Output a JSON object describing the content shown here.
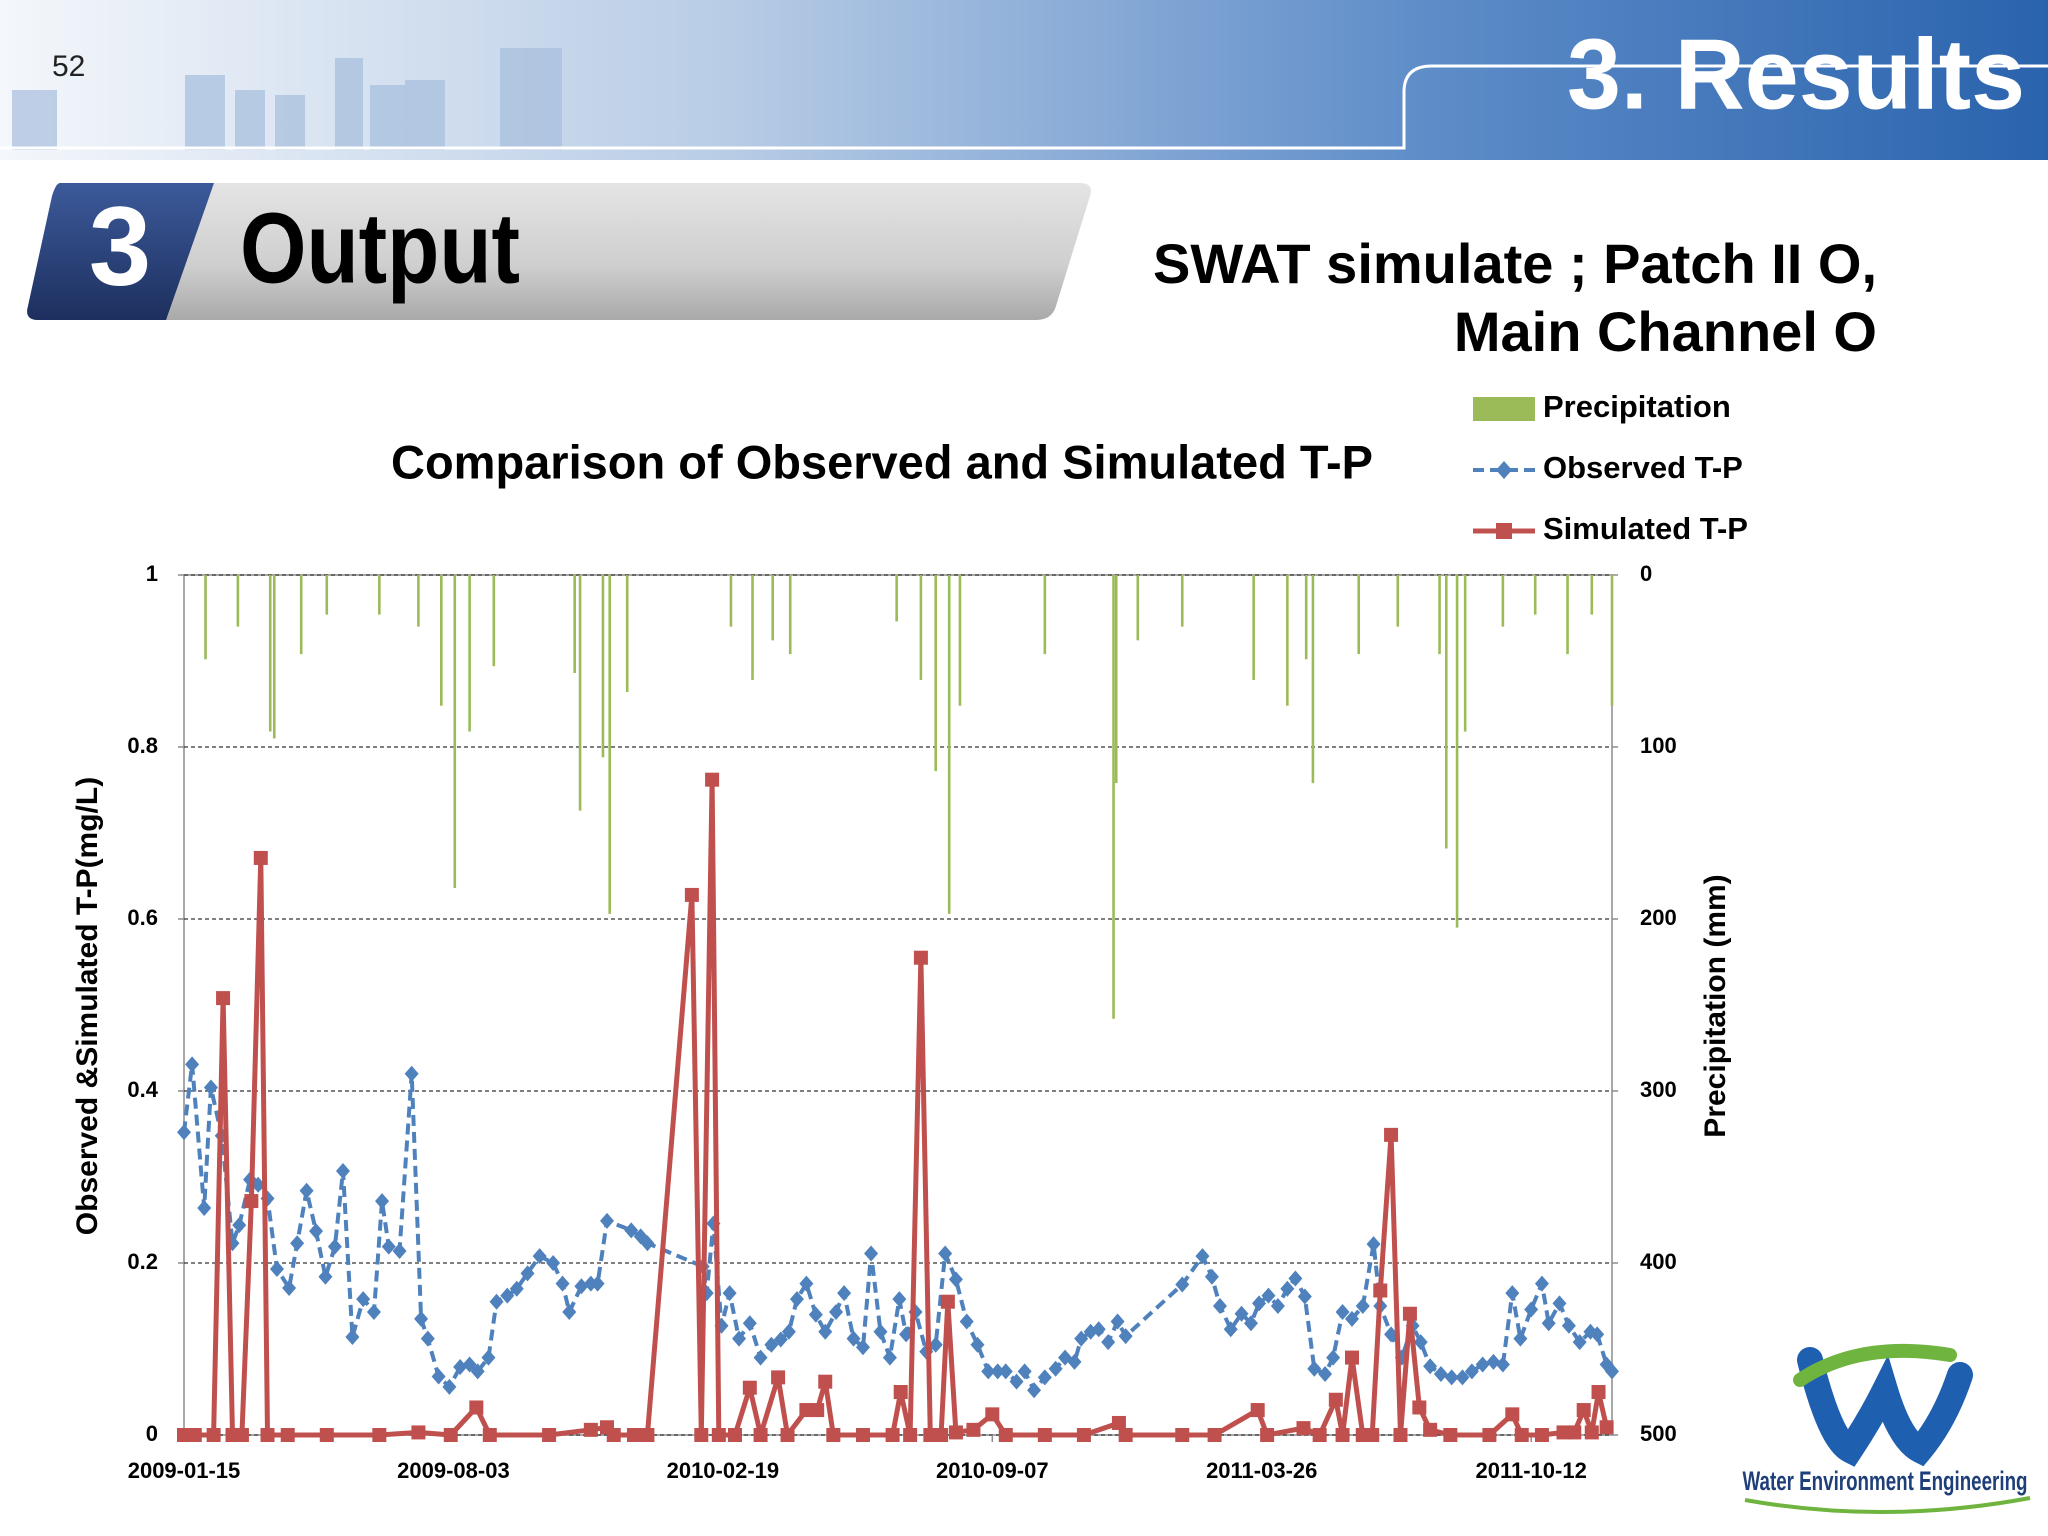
{
  "slide": {
    "page_number": "52",
    "section": "3. Results",
    "heading_number": "3",
    "heading": "Output",
    "subtitle_lines": [
      "SWAT simulate ; Patch II O,",
      "Main Channel O"
    ],
    "logo_text": "Water Environment Engineering"
  },
  "chart_data": {
    "type": "line",
    "title": "Comparison of Observed and Simulated T-P",
    "y_label": "Observed &Simulated T-P(mg/L)",
    "y2_label": "Precipitation (mm)",
    "xlim": [
      "2009-01-15",
      "2011-12-11"
    ],
    "xticks": [
      "2009-01-15",
      "2009-08-03",
      "2010-02-19",
      "2010-09-07",
      "2011-03-26",
      "2011-10-12"
    ],
    "ylim": [
      0,
      1
    ],
    "yticks": [
      0,
      0.2,
      0.4,
      0.6,
      0.8,
      1
    ],
    "y2lim": [
      0,
      500
    ],
    "y2ticks": [
      0,
      100,
      200,
      300,
      400,
      500
    ],
    "y2_inverted": true,
    "grid": true,
    "legend": "top-right",
    "series": [
      {
        "name": "Precipitation",
        "type": "bar",
        "axis": "y2",
        "color": "#9bbb59",
        "x": [
          "2009-01-31",
          "2009-02-24",
          "2009-03-20",
          "2009-03-23",
          "2009-04-12",
          "2009-05-01",
          "2009-06-09",
          "2009-07-08",
          "2009-07-25",
          "2009-08-04",
          "2009-08-15",
          "2009-09-02",
          "2009-11-01",
          "2009-11-05",
          "2009-11-22",
          "2009-11-27",
          "2009-12-10",
          "2010-02-25",
          "2010-03-13",
          "2010-03-28",
          "2010-04-10",
          "2010-06-28",
          "2010-07-16",
          "2010-07-27",
          "2010-08-06",
          "2010-08-14",
          "2010-10-16",
          "2010-12-06",
          "2010-12-08",
          "2010-12-24",
          "2011-01-26",
          "2011-03-20",
          "2011-04-14",
          "2011-04-28",
          "2011-05-03",
          "2011-06-06",
          "2011-07-05",
          "2011-08-05",
          "2011-08-10",
          "2011-08-18",
          "2011-08-24",
          "2011-09-21",
          "2011-10-15",
          "2011-11-08",
          "2011-11-26",
          "2011-12-11"
        ],
        "values": [
          49,
          30,
          91,
          95,
          46,
          23,
          23,
          30,
          76,
          182,
          91,
          53,
          57,
          137,
          106,
          197,
          68,
          30,
          61,
          38,
          46,
          27,
          61,
          114,
          197,
          76,
          46,
          258,
          121,
          38,
          30,
          61,
          76,
          49,
          121,
          46,
          30,
          46,
          159,
          205,
          91,
          30,
          23,
          46,
          23,
          76
        ]
      },
      {
        "name": "Observed T-P",
        "type": "line",
        "axis": "y",
        "color": "#4f81bd",
        "marker": "diamond",
        "dashed": true,
        "x": [
          "2009-01-15",
          "2009-01-21",
          "2009-01-30",
          "2009-02-04",
          "2009-02-12",
          "2009-02-20",
          "2009-02-25",
          "2009-03-05",
          "2009-03-11",
          "2009-03-18",
          "2009-03-25",
          "2009-04-03",
          "2009-04-09",
          "2009-04-16",
          "2009-04-23",
          "2009-04-30",
          "2009-05-07",
          "2009-05-13",
          "2009-05-20",
          "2009-05-28",
          "2009-06-05",
          "2009-06-11",
          "2009-06-16",
          "2009-06-24",
          "2009-07-03",
          "2009-07-10",
          "2009-07-15",
          "2009-07-23",
          "2009-07-31",
          "2009-08-08",
          "2009-08-15",
          "2009-08-21",
          "2009-08-29",
          "2009-09-04",
          "2009-09-12",
          "2009-09-19",
          "2009-09-27",
          "2009-10-06",
          "2009-10-16",
          "2009-10-23",
          "2009-10-28",
          "2009-11-06",
          "2009-11-13",
          "2009-11-18",
          "2009-11-25",
          "2009-12-13",
          "2009-12-20",
          "2009-12-25",
          "2010-02-04",
          "2010-02-07",
          "2010-02-12",
          "2010-02-18",
          "2010-02-24",
          "2010-03-03",
          "2010-03-11",
          "2010-03-19",
          "2010-03-27",
          "2010-04-03",
          "2010-04-09",
          "2010-04-15",
          "2010-04-22",
          "2010-04-29",
          "2010-05-06",
          "2010-05-14",
          "2010-05-20",
          "2010-05-27",
          "2010-06-03",
          "2010-06-09",
          "2010-06-16",
          "2010-06-23",
          "2010-06-30",
          "2010-07-05",
          "2010-07-12",
          "2010-07-20",
          "2010-07-27",
          "2010-08-03",
          "2010-08-11",
          "2010-08-19",
          "2010-08-27",
          "2010-09-04",
          "2010-09-11",
          "2010-09-17",
          "2010-09-25",
          "2010-10-01",
          "2010-10-08",
          "2010-10-16",
          "2010-10-24",
          "2010-10-31",
          "2010-11-07",
          "2010-11-12",
          "2010-11-19",
          "2010-11-25",
          "2010-12-02",
          "2010-12-09",
          "2010-12-15",
          "2011-01-26",
          "2011-02-10",
          "2011-02-17",
          "2011-02-23",
          "2011-03-03",
          "2011-03-11",
          "2011-03-18",
          "2011-03-24",
          "2011-03-31",
          "2011-04-07",
          "2011-04-14",
          "2011-04-20",
          "2011-04-27",
          "2011-05-04",
          "2011-05-12",
          "2011-05-18",
          "2011-05-25",
          "2011-06-01",
          "2011-06-09",
          "2011-06-17",
          "2011-06-22",
          "2011-06-30",
          "2011-07-08",
          "2011-07-16",
          "2011-07-22",
          "2011-07-29",
          "2011-08-06",
          "2011-08-14",
          "2011-08-22",
          "2011-08-29",
          "2011-09-06",
          "2011-09-14",
          "2011-09-21",
          "2011-09-28",
          "2011-10-04",
          "2011-10-12",
          "2011-10-20",
          "2011-10-25",
          "2011-11-02",
          "2011-11-09",
          "2011-11-17",
          "2011-11-25",
          "2011-11-30",
          "2011-12-07",
          "2011-12-11"
        ],
        "values": [
          0.352,
          0.431,
          0.264,
          0.404,
          0.348,
          0.223,
          0.244,
          0.297,
          0.291,
          0.275,
          0.193,
          0.171,
          0.223,
          0.284,
          0.237,
          0.184,
          0.219,
          0.307,
          0.114,
          0.158,
          0.143,
          0.272,
          0.219,
          0.214,
          0.42,
          0.135,
          0.112,
          0.068,
          0.056,
          0.079,
          0.082,
          0.074,
          0.09,
          0.155,
          0.162,
          0.17,
          0.188,
          0.208,
          0.2,
          0.176,
          0.143,
          0.173,
          0.176,
          0.176,
          0.249,
          0.238,
          0.231,
          0.223,
          0.196,
          0.165,
          0.246,
          0.127,
          0.165,
          0.112,
          0.13,
          0.09,
          0.105,
          0.111,
          0.12,
          0.158,
          0.176,
          0.14,
          0.12,
          0.143,
          0.165,
          0.112,
          0.102,
          0.211,
          0.12,
          0.09,
          0.158,
          0.117,
          0.143,
          0.097,
          0.105,
          0.211,
          0.181,
          0.132,
          0.105,
          0.074,
          0.074,
          0.074,
          0.062,
          0.074,
          0.052,
          0.067,
          0.077,
          0.09,
          0.085,
          0.112,
          0.12,
          0.123,
          0.108,
          0.132,
          0.115,
          0.175,
          0.208,
          0.184,
          0.15,
          0.123,
          0.141,
          0.13,
          0.153,
          0.162,
          0.15,
          0.17,
          0.182,
          0.161,
          0.077,
          0.071,
          0.09,
          0.143,
          0.135,
          0.15,
          0.222,
          0.15,
          0.117,
          0.09,
          0.127,
          0.108,
          0.08,
          0.071,
          0.067,
          0.067,
          0.074,
          0.082,
          0.085,
          0.082,
          0.165,
          0.112,
          0.146,
          0.176,
          0.13,
          0.153,
          0.127,
          0.108,
          0.12,
          0.117,
          0.082,
          0.074
        ]
      },
      {
        "name": "Simulated T-P",
        "type": "line",
        "axis": "y",
        "color": "#c0504d",
        "marker": "square",
        "dashed": false,
        "x": [
          "2009-01-15",
          "2009-01-23",
          "2009-02-06",
          "2009-02-13",
          "2009-02-20",
          "2009-02-27",
          "2009-03-06",
          "2009-03-13",
          "2009-03-18",
          "2009-04-02",
          "2009-05-01",
          "2009-06-09",
          "2009-07-08",
          "2009-08-01",
          "2009-08-20",
          "2009-08-30",
          "2009-10-13",
          "2009-11-13",
          "2009-11-25",
          "2009-11-30",
          "2009-12-15",
          "2009-12-25",
          "2010-01-27",
          "2010-02-03",
          "2010-02-11",
          "2010-02-16",
          "2010-02-28",
          "2010-03-11",
          "2010-03-19",
          "2010-04-01",
          "2010-04-08",
          "2010-04-22",
          "2010-04-30",
          "2010-05-06",
          "2010-05-12",
          "2010-06-03",
          "2010-06-25",
          "2010-07-01",
          "2010-07-08",
          "2010-07-16",
          "2010-07-23",
          "2010-07-31",
          "2010-08-05",
          "2010-08-11",
          "2010-08-24",
          "2010-09-07",
          "2010-09-17",
          "2010-10-16",
          "2010-11-14",
          "2010-12-10",
          "2010-12-15",
          "2011-01-26",
          "2011-02-19",
          "2011-03-23",
          "2011-03-30",
          "2011-04-26",
          "2011-05-08",
          "2011-05-20",
          "2011-05-25",
          "2011-06-01",
          "2011-06-09",
          "2011-06-16",
          "2011-06-22",
          "2011-06-30",
          "2011-07-07",
          "2011-07-14",
          "2011-07-21",
          "2011-07-29",
          "2011-08-13",
          "2011-09-11",
          "2011-09-28",
          "2011-10-05",
          "2011-10-20",
          "2011-11-05",
          "2011-11-13",
          "2011-11-20",
          "2011-11-26",
          "2011-12-01",
          "2011-12-07"
        ],
        "values": [
          0,
          0,
          0,
          0.508,
          0,
          0,
          0.272,
          0.671,
          0,
          0,
          0,
          0,
          0.003,
          0,
          0.032,
          0,
          0,
          0.006,
          0.009,
          0,
          0,
          0,
          0.628,
          0,
          0.762,
          0,
          0,
          0.055,
          0,
          0.067,
          0,
          0.029,
          0.029,
          0.062,
          0,
          0,
          0,
          0.05,
          0,
          0.555,
          0,
          0,
          0.155,
          0.003,
          0.006,
          0.024,
          0,
          0,
          0,
          0.014,
          0,
          0,
          0,
          0.029,
          0,
          0.008,
          0,
          0.041,
          0,
          0.09,
          0,
          0,
          0.168,
          0.349,
          0,
          0.141,
          0.032,
          0.006,
          0,
          0,
          0.024,
          0,
          0,
          0.003,
          0.003,
          0.029,
          0.003,
          0.05,
          0.009
        ]
      }
    ]
  }
}
